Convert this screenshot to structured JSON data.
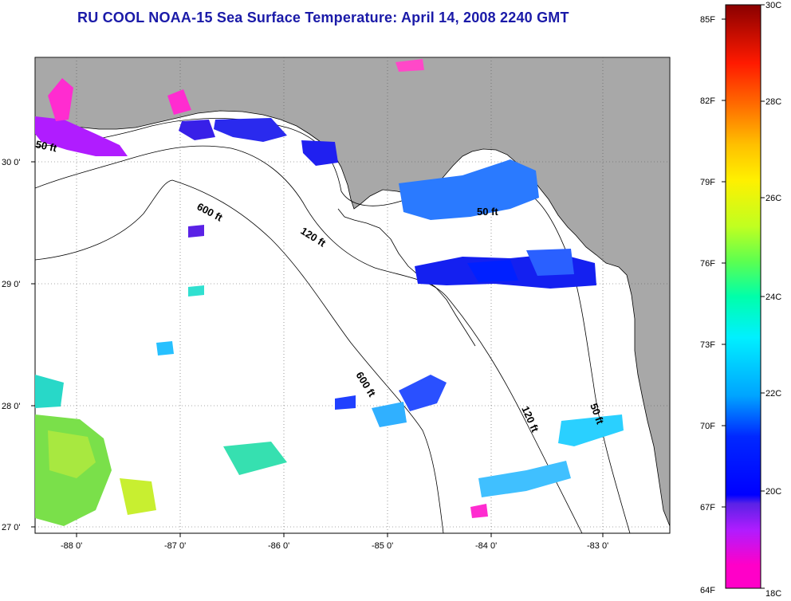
{
  "title": "RU COOL  NOAA-15  Sea Surface Temperature:  April 14, 2008 2240 GMT",
  "map": {
    "lon_labels": [
      "-88 0'",
      "-87 0'",
      "-86 0'",
      "-85 0'",
      "-84 0'",
      "-83 0'"
    ],
    "lat_labels": [
      "30 0'",
      "29 0'",
      "28 0'",
      "27 0'"
    ],
    "depth_labels": [
      "50 ft",
      "600 ft",
      "120 ft",
      "50 ft",
      "600 ft",
      "120 ft",
      "50 ft"
    ],
    "colors": {
      "land": "#a8a8a8",
      "water": "#ffffff",
      "grid": "#555555"
    }
  },
  "colorbar": {
    "fahrenheit_labels": [
      "85F",
      "82F",
      "79F",
      "76F",
      "73F",
      "70F",
      "67F",
      "64F"
    ],
    "celsius_labels": [
      "30C",
      "28C",
      "26C",
      "24C",
      "22C",
      "20C",
      "18C"
    ]
  }
}
